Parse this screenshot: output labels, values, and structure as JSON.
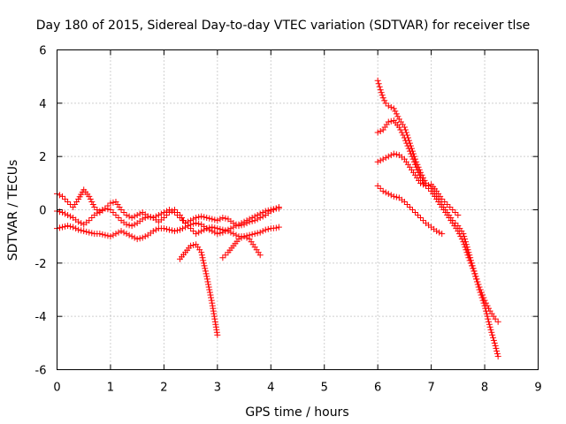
{
  "chart_data": {
    "type": "scatter",
    "title": "Day 180 of 2015, Sidereal Day-to-day VTEC variation (SDTVAR) for receiver tlse",
    "xlabel": "GPS time / hours",
    "ylabel": "SDTVAR / TECUs",
    "xlim": [
      0,
      9
    ],
    "ylim": [
      -6,
      6
    ],
    "xticks": [
      0,
      1,
      2,
      3,
      4,
      5,
      6,
      7,
      8,
      9
    ],
    "yticks": [
      -6,
      -4,
      -2,
      0,
      2,
      4,
      6
    ],
    "xtick_labels": [
      "0",
      "1",
      "2",
      "3",
      "4",
      "5",
      "6",
      "7",
      "8",
      "9"
    ],
    "ytick_labels": [
      "-6",
      "-4",
      "-2",
      "0",
      "2",
      "4",
      "6"
    ],
    "grid": true,
    "marker": "+",
    "color": "#ff0000",
    "series": [
      {
        "name": "track-a",
        "x": [
          0.0,
          0.1,
          0.2,
          0.3,
          0.4,
          0.5,
          0.6,
          0.7,
          0.8,
          0.9,
          1.0,
          1.1,
          1.2,
          1.3,
          1.4,
          1.5,
          1.6,
          1.7,
          1.8,
          1.9,
          2.0,
          2.1,
          2.2,
          2.3,
          2.4,
          2.5,
          2.6,
          2.7,
          2.8,
          2.9,
          3.0,
          3.1,
          3.2,
          3.3,
          3.4,
          3.5,
          3.6,
          3.7,
          3.8,
          3.9,
          4.0,
          4.1,
          4.15
        ],
        "y": [
          0.6,
          0.5,
          0.3,
          0.1,
          0.4,
          0.75,
          0.5,
          0.1,
          -0.1,
          0.05,
          0.25,
          0.3,
          0.0,
          -0.2,
          -0.3,
          -0.2,
          -0.1,
          -0.25,
          -0.3,
          -0.2,
          -0.1,
          0.0,
          -0.1,
          -0.3,
          -0.5,
          -0.4,
          -0.3,
          -0.25,
          -0.3,
          -0.35,
          -0.4,
          -0.3,
          -0.35,
          -0.5,
          -0.6,
          -0.55,
          -0.45,
          -0.4,
          -0.3,
          -0.2,
          -0.05,
          0.05,
          0.1
        ]
      },
      {
        "name": "track-b",
        "x": [
          0.0,
          0.1,
          0.2,
          0.3,
          0.4,
          0.5,
          0.6,
          0.7,
          0.8,
          0.9,
          1.0,
          1.1,
          1.2,
          1.3,
          1.4,
          1.5,
          1.6,
          1.7,
          1.8,
          1.9,
          2.0,
          2.1,
          2.2,
          2.3,
          2.4,
          2.5,
          2.6,
          2.7,
          2.8,
          2.9,
          3.0,
          3.1,
          3.2,
          3.3,
          3.4,
          3.5,
          3.6,
          3.7,
          3.8,
          3.9,
          4.0,
          4.1,
          4.15
        ],
        "y": [
          -0.05,
          -0.1,
          -0.2,
          -0.3,
          -0.45,
          -0.55,
          -0.4,
          -0.2,
          -0.05,
          0.05,
          0.0,
          -0.2,
          -0.4,
          -0.55,
          -0.6,
          -0.5,
          -0.35,
          -0.25,
          -0.3,
          -0.45,
          -0.3,
          -0.1,
          0.0,
          -0.2,
          -0.5,
          -0.7,
          -0.9,
          -0.8,
          -0.7,
          -0.65,
          -0.7,
          -0.75,
          -0.8,
          -0.9,
          -1.0,
          -1.0,
          -0.95,
          -0.9,
          -0.85,
          -0.75,
          -0.7,
          -0.68,
          -0.65
        ]
      },
      {
        "name": "track-c",
        "x": [
          0.0,
          0.1,
          0.2,
          0.3,
          0.4,
          0.5,
          0.6,
          0.7,
          0.8,
          0.9,
          1.0,
          1.1,
          1.2,
          1.3,
          1.4,
          1.5,
          1.6,
          1.7,
          1.8,
          1.9,
          2.0,
          2.1,
          2.2,
          2.3,
          2.4,
          2.5,
          2.6,
          2.7,
          2.8,
          2.9,
          3.0,
          3.1,
          3.2,
          3.3,
          3.4,
          3.5,
          3.6,
          3.7,
          3.8,
          3.9,
          4.0,
          4.1,
          4.15
        ],
        "y": [
          -0.7,
          -0.65,
          -0.6,
          -0.65,
          -0.75,
          -0.8,
          -0.85,
          -0.9,
          -0.9,
          -0.95,
          -1.0,
          -0.9,
          -0.8,
          -0.9,
          -1.0,
          -1.1,
          -1.05,
          -0.95,
          -0.8,
          -0.7,
          -0.7,
          -0.75,
          -0.8,
          -0.75,
          -0.65,
          -0.55,
          -0.5,
          -0.55,
          -0.7,
          -0.8,
          -0.9,
          -0.85,
          -0.75,
          -0.65,
          -0.55,
          -0.45,
          -0.35,
          -0.25,
          -0.15,
          -0.05,
          0.0,
          0.05,
          0.05
        ]
      },
      {
        "name": "track-d",
        "x": [
          2.3,
          2.4,
          2.5,
          2.6,
          2.7,
          2.8,
          2.9,
          3.0
        ],
        "y": [
          -1.85,
          -1.6,
          -1.35,
          -1.3,
          -1.6,
          -2.5,
          -3.5,
          -4.7
        ]
      },
      {
        "name": "track-e",
        "x": [
          3.1,
          3.2,
          3.3,
          3.4,
          3.5,
          3.6,
          3.7,
          3.8
        ],
        "y": [
          -1.8,
          -1.6,
          -1.35,
          -1.1,
          -1.0,
          -1.1,
          -1.4,
          -1.7
        ]
      },
      {
        "name": "track-f",
        "x": [
          6.0,
          6.05,
          6.1,
          6.15,
          6.2,
          6.3,
          6.4,
          6.5,
          6.6,
          6.7,
          6.8,
          6.9,
          7.0,
          7.1,
          7.2,
          7.3,
          7.4,
          7.5,
          7.6,
          7.7,
          7.8,
          7.9,
          8.0,
          8.1,
          8.2,
          8.25
        ],
        "y": [
          4.85,
          4.5,
          4.2,
          4.0,
          3.9,
          3.8,
          3.4,
          3.1,
          2.5,
          1.9,
          1.4,
          1.0,
          0.8,
          0.5,
          0.2,
          -0.1,
          -0.4,
          -0.6,
          -0.9,
          -1.6,
          -2.3,
          -3.0,
          -3.6,
          -4.4,
          -5.1,
          -5.5
        ]
      },
      {
        "name": "track-g",
        "x": [
          6.0,
          6.1,
          6.2,
          6.3,
          6.4,
          6.5,
          6.6,
          6.7,
          6.8,
          6.9,
          7.0,
          7.1,
          7.2,
          7.3,
          7.4,
          7.5,
          7.6,
          7.7,
          7.8,
          7.9,
          8.0,
          8.1,
          8.2,
          8.25
        ],
        "y": [
          2.9,
          3.0,
          3.3,
          3.35,
          3.1,
          2.7,
          2.2,
          1.7,
          1.2,
          0.9,
          0.7,
          0.4,
          0.1,
          -0.2,
          -0.5,
          -0.8,
          -1.2,
          -1.8,
          -2.3,
          -2.9,
          -3.4,
          -3.8,
          -4.1,
          -4.2
        ]
      },
      {
        "name": "track-h",
        "x": [
          6.0,
          6.1,
          6.2,
          6.3,
          6.4,
          6.5,
          6.6,
          6.7,
          6.8,
          6.9,
          7.0,
          7.1,
          7.2,
          7.3,
          7.4,
          7.5
        ],
        "y": [
          1.8,
          1.9,
          2.0,
          2.1,
          2.05,
          1.9,
          1.6,
          1.3,
          1.0,
          0.9,
          0.95,
          0.7,
          0.4,
          0.2,
          0.0,
          -0.2
        ]
      },
      {
        "name": "track-i",
        "x": [
          6.0,
          6.1,
          6.2,
          6.3,
          6.4,
          6.5,
          6.6,
          6.7,
          6.8,
          6.9,
          7.0,
          7.1,
          7.2
        ],
        "y": [
          0.9,
          0.7,
          0.6,
          0.5,
          0.45,
          0.3,
          0.1,
          -0.1,
          -0.3,
          -0.5,
          -0.65,
          -0.8,
          -0.9
        ]
      }
    ]
  }
}
